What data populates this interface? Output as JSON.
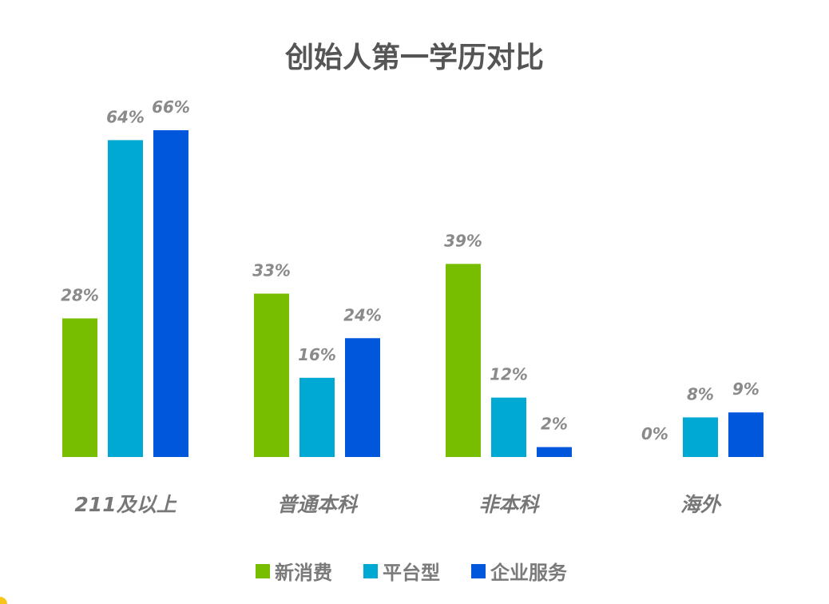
{
  "chart_data": {
    "type": "bar",
    "title": "创始人第一学历对比",
    "categories": [
      "211及以上",
      "普通本科",
      "非本科",
      "海外"
    ],
    "series": [
      {
        "name": "新消费",
        "color": "#78be00",
        "values": [
          28,
          33,
          39,
          0
        ]
      },
      {
        "name": "平台型",
        "color": "#00a9d3",
        "values": [
          64,
          16,
          12,
          8
        ]
      },
      {
        "name": "企业服务",
        "color": "#0057db",
        "values": [
          66,
          24,
          2,
          9
        ]
      }
    ],
    "value_suffix": "%",
    "xlabel": "",
    "ylabel": "",
    "ylim": [
      0,
      66
    ],
    "grid": false,
    "legend_position": "bottom"
  }
}
